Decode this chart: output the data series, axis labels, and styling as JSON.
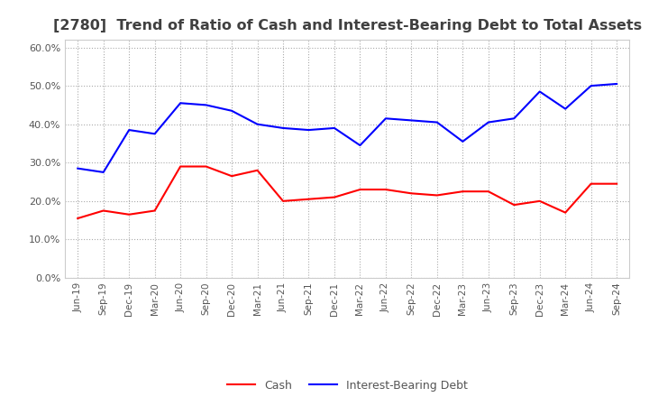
{
  "title": "[2780]  Trend of Ratio of Cash and Interest-Bearing Debt to Total Assets",
  "x_labels": [
    "Jun-19",
    "Sep-19",
    "Dec-19",
    "Mar-20",
    "Jun-20",
    "Sep-20",
    "Dec-20",
    "Mar-21",
    "Jun-21",
    "Sep-21",
    "Dec-21",
    "Mar-22",
    "Jun-22",
    "Sep-22",
    "Dec-22",
    "Mar-23",
    "Jun-23",
    "Sep-23",
    "Dec-23",
    "Mar-24",
    "Jun-24",
    "Sep-24"
  ],
  "cash": [
    0.155,
    0.175,
    0.165,
    0.175,
    0.29,
    0.29,
    0.265,
    0.28,
    0.2,
    0.205,
    0.21,
    0.23,
    0.23,
    0.22,
    0.215,
    0.225,
    0.225,
    0.19,
    0.2,
    0.17,
    0.245,
    0.245
  ],
  "debt": [
    0.285,
    0.275,
    0.385,
    0.375,
    0.455,
    0.45,
    0.435,
    0.4,
    0.39,
    0.385,
    0.39,
    0.345,
    0.415,
    0.41,
    0.405,
    0.355,
    0.405,
    0.415,
    0.485,
    0.44,
    0.5,
    0.505
  ],
  "cash_color": "#FF0000",
  "debt_color": "#0000FF",
  "ylim": [
    0.0,
    0.62
  ],
  "yticks": [
    0.0,
    0.1,
    0.2,
    0.3,
    0.4,
    0.5,
    0.6
  ],
  "legend_cash": "Cash",
  "legend_debt": "Interest-Bearing Debt",
  "background_color": "#FFFFFF",
  "grid_color": "#AAAAAA",
  "title_color": "#404040",
  "title_fontsize": 11.5,
  "tick_label_color": "#555555"
}
